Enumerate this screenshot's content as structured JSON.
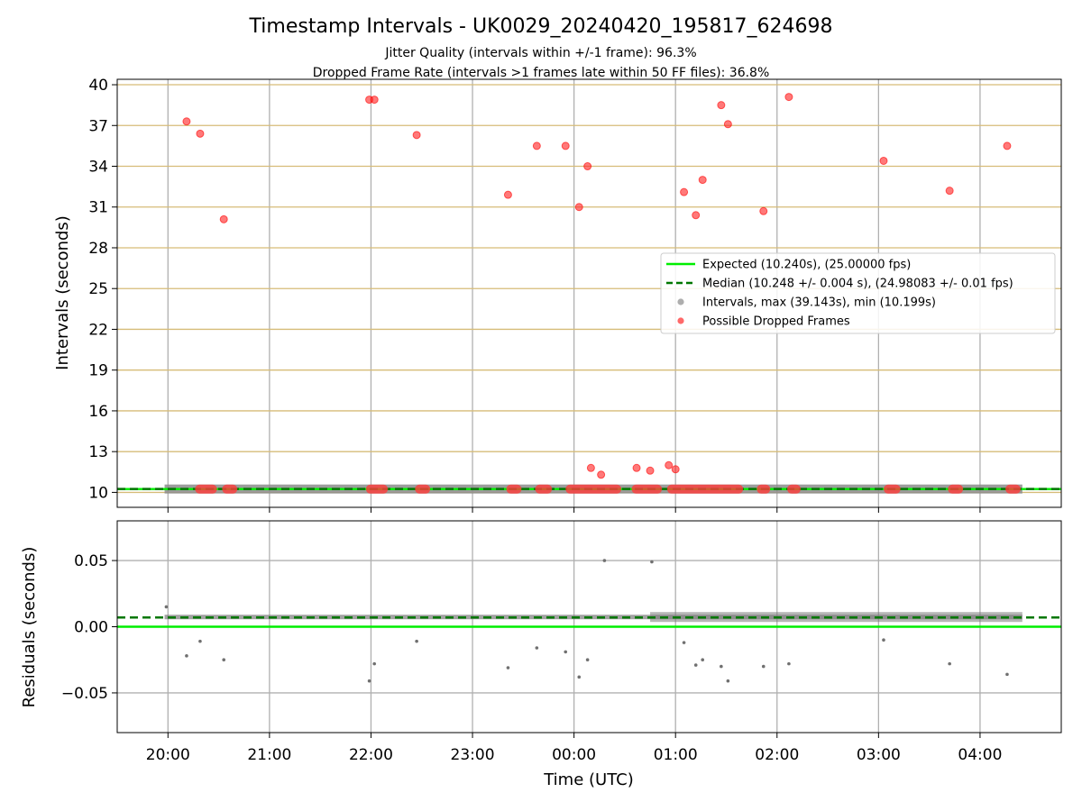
{
  "chart_data": {
    "type": "scatter",
    "title": "Timestamp Intervals - UK0029_20240420_195817_624698",
    "subtitle_lines": [
      "Jitter Quality (intervals within +/-1 frame): 96.3%",
      "Dropped Frame Rate (intervals >1 frames late within 50 FF files): 36.8%"
    ],
    "xlabel": "Time (UTC)",
    "xlim": [
      "19:30",
      "04:48"
    ],
    "x_ticks": [
      "20:00",
      "21:00",
      "22:00",
      "23:00",
      "00:00",
      "01:00",
      "02:00",
      "03:00",
      "04:00"
    ],
    "panels": [
      {
        "name": "intervals",
        "ylabel": "Intervals (seconds)",
        "ylim": [
          8.9,
          40.4
        ],
        "y_ticks": [
          "10",
          "13",
          "16",
          "19",
          "22",
          "25",
          "28",
          "31",
          "34",
          "37",
          "40"
        ],
        "grid": true,
        "legend_position": "center-right",
        "expected_value": 10.24,
        "median_value": 10.248,
        "series": [
          {
            "name": "Expected (10.240s), (25.00000 fps)",
            "kind": "hline",
            "color": "#00ee00",
            "value": 10.24
          },
          {
            "name": "Median (10.248 +/- 0.004 s), (24.98083 +/- 0.01 fps)",
            "kind": "hline-dashed",
            "color": "#007700",
            "value": 10.248
          },
          {
            "name": "Intervals, max (39.143s), min (10.199s)",
            "kind": "band",
            "color": "#808080",
            "x_range": [
              "19:58",
              "04:25"
            ],
            "value": 10.248
          },
          {
            "name": "Possible Dropped Frames",
            "kind": "scatter",
            "color": "#ff0000",
            "points": [
              [
                "20:11",
                37.3
              ],
              [
                "20:19",
                36.4
              ],
              [
                "20:33",
                30.1
              ],
              [
                "21:59",
                38.9
              ],
              [
                "22:02",
                38.9
              ],
              [
                "22:27",
                36.3
              ],
              [
                "23:21",
                31.9
              ],
              [
                "23:38",
                35.5
              ],
              [
                "23:55",
                35.5
              ],
              [
                "00:03",
                31.0
              ],
              [
                "00:08",
                34.0
              ],
              [
                "00:10",
                11.8
              ],
              [
                "00:16",
                11.3
              ],
              [
                "00:37",
                11.8
              ],
              [
                "00:45",
                11.6
              ],
              [
                "00:56",
                12.0
              ],
              [
                "01:00",
                11.7
              ],
              [
                "01:05",
                32.1
              ],
              [
                "01:12",
                30.4
              ],
              [
                "01:16",
                33.0
              ],
              [
                "01:27",
                38.5
              ],
              [
                "01:31",
                37.1
              ],
              [
                "01:52",
                30.7
              ],
              [
                "02:07",
                39.1
              ],
              [
                "03:03",
                34.4
              ],
              [
                "03:42",
                32.2
              ],
              [
                "04:16",
                35.5
              ]
            ],
            "clusters_at_baseline": [
              [
                "20:16",
                "20:29"
              ],
              [
                "20:32",
                "20:41"
              ],
              [
                "21:57",
                "22:10"
              ],
              [
                "22:26",
                "22:35"
              ],
              [
                "23:20",
                "23:29"
              ],
              [
                "23:37",
                "23:47"
              ],
              [
                "23:55",
                "00:28"
              ],
              [
                "00:34",
                "00:52"
              ],
              [
                "00:55",
                "01:40"
              ],
              [
                "01:48",
                "01:56"
              ],
              [
                "02:06",
                "02:14"
              ],
              [
                "03:03",
                "03:13"
              ],
              [
                "03:41",
                "03:50"
              ],
              [
                "04:15",
                "04:24"
              ]
            ]
          }
        ]
      },
      {
        "name": "residuals",
        "ylabel": "Residuals (seconds)",
        "ylim": [
          -0.08,
          0.08
        ],
        "y_ticks": [
          "−0.05",
          "0.00",
          "0.05"
        ],
        "y_tick_values": [
          -0.05,
          0.0,
          0.05
        ],
        "grid": true,
        "series": [
          {
            "name": "zero",
            "kind": "hline",
            "color": "#00ee00",
            "value": 0.0
          },
          {
            "name": "median offset",
            "kind": "hline-dashed",
            "color": "#007700",
            "value": 0.007
          },
          {
            "name": "residuals",
            "kind": "scatter",
            "color": "#707070",
            "points": [
              [
                "19:59",
                0.015
              ],
              [
                "20:11",
                -0.022
              ],
              [
                "20:19",
                -0.011
              ],
              [
                "20:33",
                -0.025
              ],
              [
                "21:59",
                -0.041
              ],
              [
                "22:02",
                -0.028
              ],
              [
                "22:27",
                -0.011
              ],
              [
                "23:21",
                -0.031
              ],
              [
                "23:38",
                -0.016
              ],
              [
                "23:55",
                -0.019
              ],
              [
                "00:03",
                -0.038
              ],
              [
                "00:08",
                -0.025
              ],
              [
                "00:18",
                0.05
              ],
              [
                "00:46",
                0.049
              ],
              [
                "01:05",
                -0.012
              ],
              [
                "01:12",
                -0.029
              ],
              [
                "01:16",
                -0.025
              ],
              [
                "01:27",
                -0.03
              ],
              [
                "01:31",
                -0.041
              ],
              [
                "01:52",
                -0.03
              ],
              [
                "02:07",
                -0.028
              ],
              [
                "03:03",
                -0.01
              ],
              [
                "03:42",
                -0.028
              ],
              [
                "04:16",
                -0.036
              ]
            ]
          }
        ]
      }
    ],
    "legend": [
      {
        "label": "Expected (10.240s), (25.00000 fps)",
        "marker": "line",
        "color": "#00ee00"
      },
      {
        "label": "Median (10.248 +/- 0.004 s), (24.98083 +/- 0.01 fps)",
        "marker": "dashed",
        "color": "#007700"
      },
      {
        "label": "Intervals, max (39.143s), min (10.199s)",
        "marker": "dot",
        "color": "#9a9a9a"
      },
      {
        "label": "Possible Dropped Frames",
        "marker": "dot",
        "color": "#ff4444"
      }
    ]
  }
}
